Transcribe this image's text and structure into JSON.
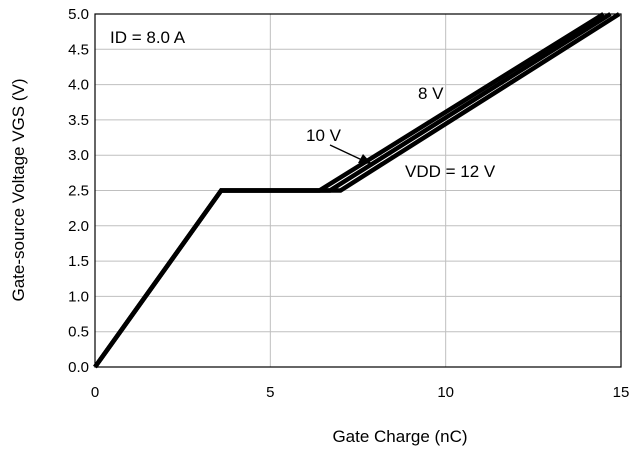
{
  "chart_data": {
    "type": "line",
    "title": "",
    "xlabel": "Gate Charge (nC)",
    "ylabel": "Gate-source Voltage VGS (V)",
    "xlim": [
      0,
      15
    ],
    "ylim": [
      0,
      5
    ],
    "xticks": [
      "0",
      "5",
      "10",
      "15"
    ],
    "yticks": [
      "0.0",
      "0.5",
      "1.0",
      "1.5",
      "2.0",
      "2.5",
      "3.0",
      "3.5",
      "4.0",
      "4.5",
      "5.0"
    ],
    "grid": true,
    "series": [
      {
        "name": "8 V",
        "x": [
          0,
          3.6,
          6.4,
          14.5
        ],
        "y": [
          0,
          2.5,
          2.5,
          5.0
        ]
      },
      {
        "name": "10 V",
        "x": [
          0,
          3.6,
          6.7,
          14.7
        ],
        "y": [
          0,
          2.5,
          2.5,
          5.0
        ]
      },
      {
        "name": "VDD = 12 V",
        "x": [
          0,
          3.6,
          7.0,
          14.95
        ],
        "y": [
          0,
          2.5,
          2.5,
          5.0
        ]
      }
    ],
    "annotations": [
      {
        "text": "ID = 8.0 A"
      },
      {
        "text": "8 V"
      },
      {
        "text": "10 V"
      },
      {
        "text": "VDD = 12 V"
      }
    ]
  }
}
